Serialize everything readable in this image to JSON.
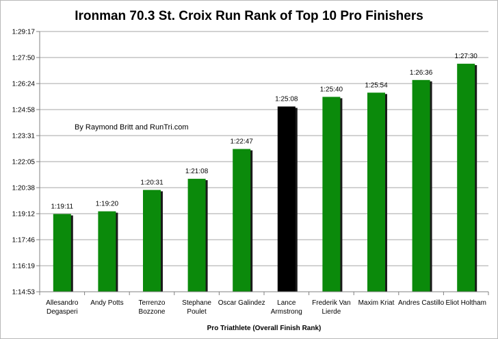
{
  "chart_data": {
    "type": "bar",
    "title": "Ironman 70.3 St. Croix Run Rank of Top 10 Pro Finishers",
    "xlabel": "Pro Triathlete (Overall Finish Rank)",
    "ylabel": "",
    "annotation": "By Raymond Britt and RunTri.com",
    "categories": [
      [
        "Allesandro",
        "Degasperi"
      ],
      [
        "Andy Potts"
      ],
      [
        "Terrenzo",
        "Bozzone"
      ],
      [
        "Stephane",
        "Poulet"
      ],
      [
        "Oscar Galindez"
      ],
      [
        "Lance",
        "Armstrong"
      ],
      [
        "Frederik Van",
        "Lierde"
      ],
      [
        "Maxim Kriat"
      ],
      [
        "Andres Castillo"
      ],
      [
        "Eliot Holtham"
      ]
    ],
    "values_seconds": [
      4751,
      4760,
      4831,
      4868,
      4967,
      5108,
      5140,
      5154,
      5196,
      5250
    ],
    "value_labels": [
      "1:19:11",
      "1:19:20",
      "1:20:31",
      "1:21:08",
      "1:22:47",
      "1:25:08",
      "1:25:40",
      "1:25:54",
      "1:26:36",
      "1:27:30"
    ],
    "highlight_index": 5,
    "colors": {
      "bar": "#0b8a0b",
      "highlight": "#000000",
      "shadow": "#1a1a1a",
      "grid": "#a6a6a6"
    },
    "ylim_seconds": [
      4493,
      5357
    ],
    "y_tick_labels": [
      "1:14:53",
      "1:16:19",
      "1:17:46",
      "1:19:12",
      "1:20:38",
      "1:22:05",
      "1:23:31",
      "1:24:58",
      "1:26:24",
      "1:27:50",
      "1:29:17"
    ],
    "grid": true,
    "legend": "none"
  }
}
